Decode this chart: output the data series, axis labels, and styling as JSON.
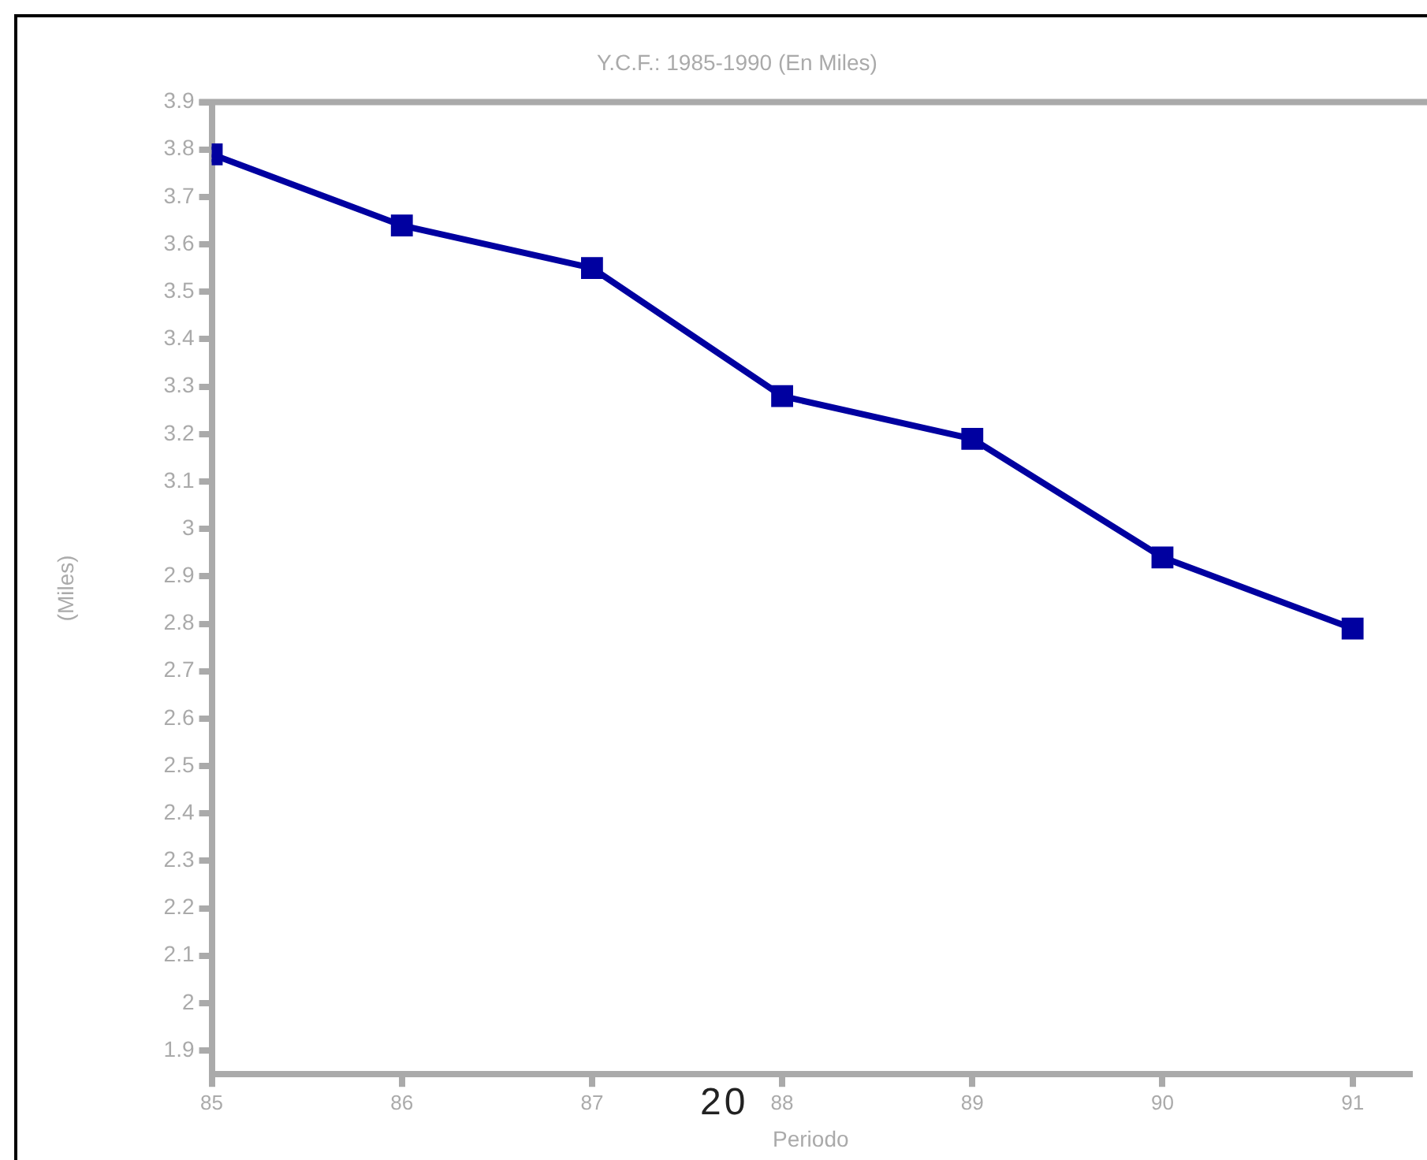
{
  "chart_data": {
    "type": "line",
    "title": "Y.C.F.: 1985-1990 (En Miles)",
    "xlabel": "Periodo",
    "ylabel": "(Miles)",
    "x": [
      85,
      86,
      87,
      88,
      89,
      90,
      91
    ],
    "series": [
      {
        "color": "#0000a0",
        "values": [
          3.79,
          3.64,
          3.55,
          3.28,
          3.19,
          2.94,
          2.79
        ]
      }
    ],
    "xlim": [
      85,
      91.3
    ],
    "xticks": [
      85,
      86,
      87,
      88,
      89,
      90,
      91
    ],
    "ylim": [
      1.85,
      3.9
    ],
    "yticks": [
      1.9,
      2,
      2.1,
      2.2,
      2.3,
      2.4,
      2.5,
      2.6,
      2.7,
      2.8,
      2.9,
      3,
      3.1,
      3.2,
      3.3,
      3.4,
      3.5,
      3.6,
      3.7,
      3.8,
      3.9
    ],
    "grid": false,
    "legend": false,
    "marker": "square",
    "line_style": "solid",
    "annotations": [
      "20"
    ]
  }
}
